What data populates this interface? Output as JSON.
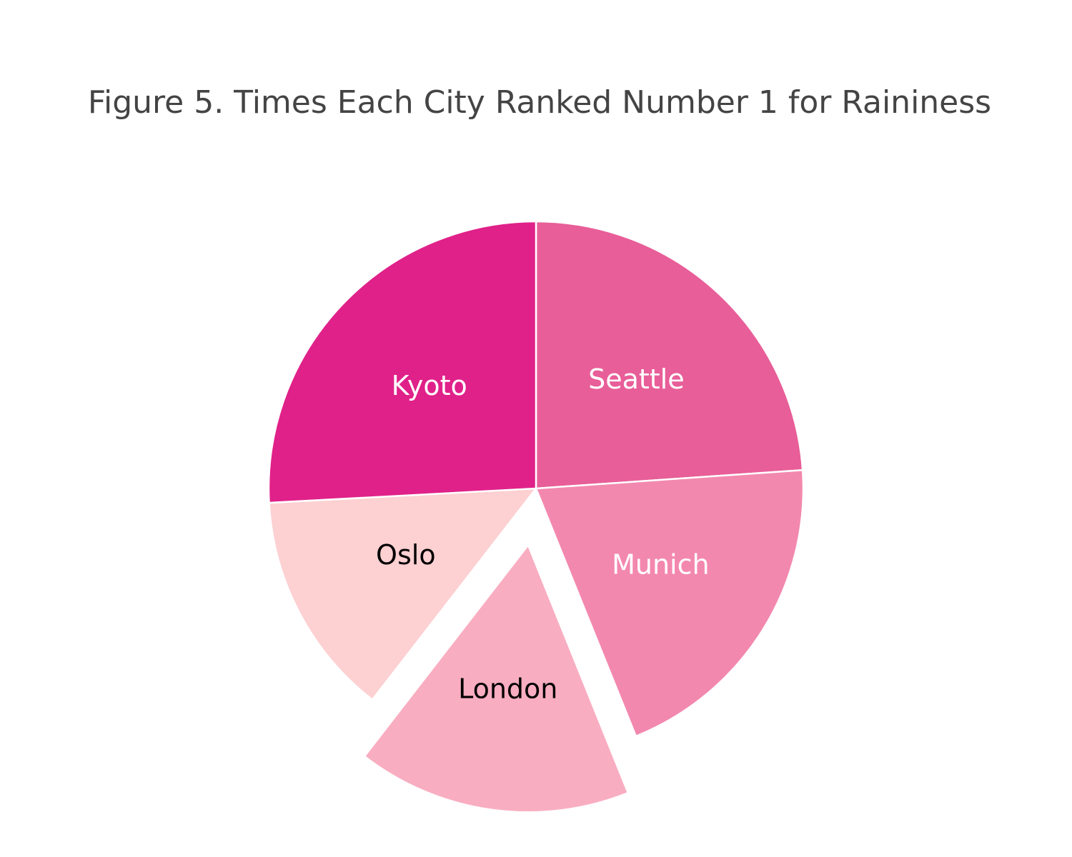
{
  "chart_data": {
    "type": "pie",
    "title": "Figure 5. Times Each City Ranked Number 1 for Raininess",
    "slices": [
      {
        "label": "Seattle",
        "value": 24.5,
        "color": "#E85E98",
        "label_color": "#ffffff",
        "exploded": false
      },
      {
        "label": "Munich",
        "value": 20.5,
        "color": "#F388AE",
        "label_color": "#ffffff",
        "exploded": false
      },
      {
        "label": "London",
        "value": 17.0,
        "color": "#F9ADC1",
        "label_color": "#000000",
        "exploded": true
      },
      {
        "label": "Oslo",
        "value": 14.0,
        "color": "#FDD0D2",
        "label_color": "#000000",
        "exploded": false
      },
      {
        "label": "Kyoto",
        "value": 26.5,
        "color": "#E02189",
        "label_color": "#ffffff",
        "exploded": false
      }
    ],
    "direction": "clockwise",
    "start_angle": "top",
    "legend": "none"
  }
}
